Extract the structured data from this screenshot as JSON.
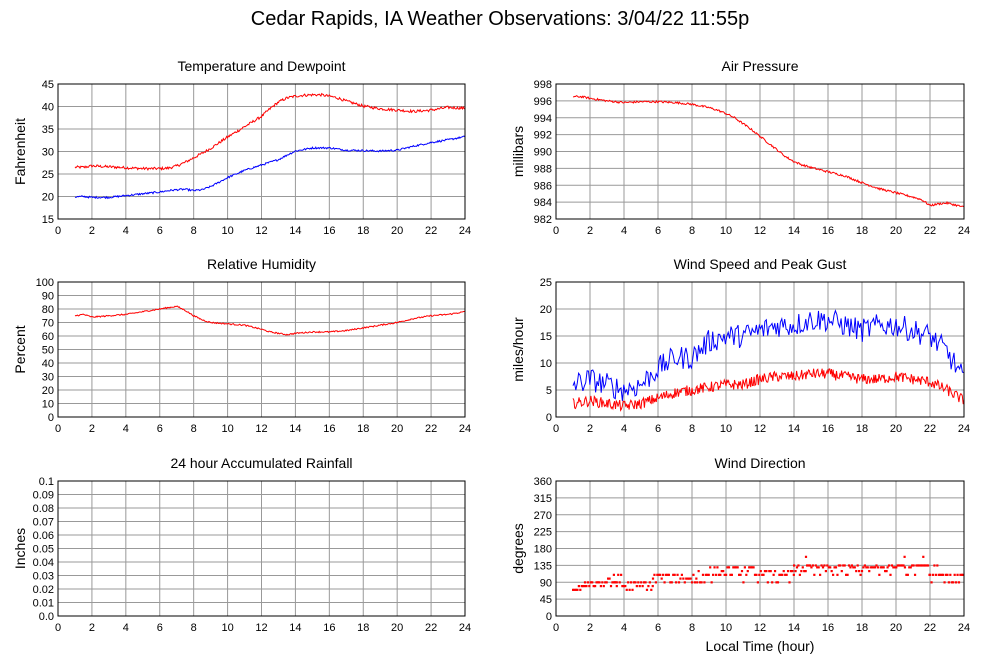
{
  "page": {
    "title": "Cedar Rapids, IA Weather Observations: 3/04/22 11:55p",
    "xlabel": "Local Time (hour)"
  },
  "colors": {
    "temperature": "#ff0000",
    "dewpoint": "#0000ff",
    "grid": "#999999"
  },
  "chart_data": [
    {
      "id": "temp",
      "type": "line",
      "title": "Temperature and Dewpoint",
      "ylabel": "Fahrenheit",
      "xlim": [
        0,
        24
      ],
      "ylim": [
        15,
        45
      ],
      "xticks": [
        0,
        2,
        4,
        6,
        8,
        10,
        12,
        14,
        16,
        18,
        20,
        22,
        24
      ],
      "yticks": [
        15,
        20,
        25,
        30,
        35,
        40,
        45
      ],
      "grid": true,
      "series": [
        {
          "color": "#ff0000",
          "noise": 0.3,
          "x": [
            1,
            1.5,
            2,
            3,
            4,
            5,
            6,
            6.5,
            7,
            7.5,
            8,
            8.5,
            9,
            10,
            11,
            12,
            12.5,
            13,
            13.5,
            14,
            14.5,
            15,
            15.5,
            16,
            16.5,
            17,
            18,
            19,
            20,
            21,
            22,
            23,
            24
          ],
          "y": [
            26.5,
            26.5,
            26.8,
            26.6,
            26.4,
            26.2,
            26.2,
            26.3,
            26.8,
            27.6,
            28.6,
            29.6,
            30.7,
            33.2,
            35.5,
            37.8,
            39.5,
            41.0,
            41.9,
            42.3,
            42.5,
            42.6,
            42.6,
            42.3,
            41.9,
            41.2,
            40.1,
            39.5,
            39.2,
            38.9,
            39.2,
            39.8,
            39.6
          ]
        },
        {
          "color": "#0000ff",
          "noise": 0.2,
          "x": [
            1,
            1.5,
            2,
            3,
            4,
            5,
            6,
            6.5,
            7,
            7.5,
            8,
            8.5,
            9,
            10,
            11,
            12,
            12.5,
            13,
            13.5,
            14,
            15,
            16,
            17,
            18,
            19,
            20,
            21,
            22,
            23,
            24
          ],
          "y": [
            19.9,
            20.0,
            19.8,
            19.8,
            20.2,
            20.6,
            21.0,
            21.3,
            21.5,
            21.6,
            21.3,
            21.5,
            22.2,
            24.2,
            25.8,
            27.0,
            27.6,
            28.2,
            29.2,
            30.1,
            30.8,
            30.8,
            30.3,
            30.2,
            30.1,
            30.3,
            31.2,
            32.0,
            32.6,
            33.3
          ]
        }
      ]
    },
    {
      "id": "pres",
      "type": "line",
      "title": "Air Pressure",
      "ylabel": "millibars",
      "xlim": [
        0,
        24
      ],
      "ylim": [
        982,
        998
      ],
      "xticks": [
        0,
        2,
        4,
        6,
        8,
        10,
        12,
        14,
        16,
        18,
        20,
        22,
        24
      ],
      "yticks": [
        982,
        984,
        986,
        988,
        990,
        992,
        994,
        996,
        998
      ],
      "grid": true,
      "series": [
        {
          "color": "#ff0000",
          "noise": 0.12,
          "x": [
            1,
            1.5,
            2,
            3,
            4,
            5,
            6,
            7,
            7.5,
            8,
            8.5,
            9,
            9.5,
            10,
            10.5,
            11,
            11.5,
            12,
            12.5,
            13,
            13.5,
            14,
            14.5,
            15,
            16,
            17,
            18,
            19,
            20,
            21,
            21.5,
            22,
            22.5,
            23,
            24
          ],
          "y": [
            996.5,
            996.5,
            996.3,
            996.0,
            995.8,
            995.9,
            995.9,
            995.8,
            995.7,
            995.6,
            995.4,
            995.2,
            994.9,
            994.5,
            994.0,
            993.3,
            992.6,
            991.8,
            991.0,
            990.2,
            989.4,
            988.8,
            988.4,
            988.1,
            987.6,
            987.1,
            986.3,
            985.6,
            985.1,
            984.6,
            984.3,
            983.6,
            983.8,
            983.9,
            983.4
          ]
        }
      ]
    },
    {
      "id": "rh",
      "type": "line",
      "title": "Relative Humidity",
      "ylabel": "Percent",
      "xlim": [
        0,
        24
      ],
      "ylim": [
        0,
        100
      ],
      "xticks": [
        0,
        2,
        4,
        6,
        8,
        10,
        12,
        14,
        16,
        18,
        20,
        22,
        24
      ],
      "yticks": [
        0,
        10,
        20,
        30,
        40,
        50,
        60,
        70,
        80,
        90,
        100
      ],
      "grid": true,
      "series": [
        {
          "color": "#ff0000",
          "noise": 0.5,
          "x": [
            1,
            1.5,
            2,
            3,
            4,
            5,
            6,
            6.5,
            7,
            7.5,
            8,
            8.5,
            9,
            10,
            11,
            12,
            12.5,
            13,
            13.5,
            14,
            15,
            16,
            17,
            18,
            19,
            20,
            21,
            22,
            23,
            24
          ],
          "y": [
            75,
            76,
            74,
            75,
            76,
            78,
            80,
            81,
            82,
            79,
            75,
            72,
            70,
            69,
            68,
            65,
            63,
            62,
            61,
            62,
            63,
            63,
            64,
            66,
            68,
            70,
            73,
            75,
            76,
            78
          ]
        }
      ]
    },
    {
      "id": "wind",
      "type": "line",
      "title": "Wind Speed and Peak Gust",
      "ylabel": "miles/hour",
      "xlim": [
        0,
        24
      ],
      "ylim": [
        0,
        25
      ],
      "xticks": [
        0,
        2,
        4,
        6,
        8,
        10,
        12,
        14,
        16,
        18,
        20,
        22,
        24
      ],
      "yticks": [
        0,
        5,
        10,
        15,
        20,
        25
      ],
      "grid": true,
      "series": [
        {
          "color": "#0000ff",
          "noise": 2.2,
          "x": [
            1,
            2,
            3,
            4,
            5,
            6,
            7,
            8,
            9,
            10,
            11,
            12,
            13,
            14,
            15,
            16,
            17,
            18,
            19,
            20,
            21,
            22,
            23,
            24
          ],
          "y": [
            6,
            7,
            6,
            5,
            6,
            9,
            11,
            11,
            14,
            15,
            15,
            16,
            17,
            17,
            18,
            18,
            17,
            16,
            17,
            17,
            16,
            15,
            12,
            7
          ]
        },
        {
          "color": "#ff0000",
          "noise": 1.0,
          "x": [
            1,
            2,
            3,
            4,
            5,
            6,
            7,
            8,
            9,
            10,
            11,
            12,
            13,
            14,
            15,
            16,
            17,
            18,
            19,
            20,
            21,
            22,
            23,
            24
          ],
          "y": [
            2.5,
            3,
            2.5,
            2,
            2.5,
            3.5,
            4.5,
            5,
            5.5,
            6,
            6,
            7,
            7.5,
            7.5,
            8,
            8,
            7.5,
            7,
            7,
            7.5,
            7,
            6.5,
            5,
            3
          ]
        }
      ]
    },
    {
      "id": "rain",
      "type": "line",
      "title": "24 hour Accumulated Rainfall",
      "ylabel": "Inches",
      "xlim": [
        0,
        24
      ],
      "ylim": [
        0,
        0.1
      ],
      "xticks": [
        0,
        2,
        4,
        6,
        8,
        10,
        12,
        14,
        16,
        18,
        20,
        22,
        24
      ],
      "yticks": [
        0.0,
        0.01,
        0.02,
        0.03,
        0.04,
        0.05,
        0.06,
        0.07,
        0.08,
        0.09,
        0.1
      ],
      "ytick_labels": [
        "0.0",
        "0.01",
        "0.02",
        "0.03",
        "0.04",
        "0.05",
        "0.06",
        "0.07",
        "0.08",
        "0.09",
        "0.1"
      ],
      "grid": true,
      "series": [
        {
          "color": "#ff0000",
          "noise": 0,
          "x": [
            1,
            24
          ],
          "y": [
            0,
            0
          ]
        }
      ]
    },
    {
      "id": "dir",
      "type": "scatter",
      "title": "Wind Direction",
      "ylabel": "degrees",
      "xlim": [
        0,
        24
      ],
      "ylim": [
        0,
        360
      ],
      "xticks": [
        0,
        2,
        4,
        6,
        8,
        10,
        12,
        14,
        16,
        18,
        20,
        22,
        24
      ],
      "yticks": [
        0,
        45,
        90,
        135,
        180,
        225,
        270,
        315,
        360
      ],
      "grid": true,
      "series": [
        {
          "color": "#ff0000",
          "segments": [
            {
              "x0": 1.0,
              "x1": 1.7,
              "vals": [
                70,
                70,
                80
              ]
            },
            {
              "x0": 1.7,
              "x1": 3.6,
              "vals": [
                90,
                90,
                80,
                100
              ]
            },
            {
              "x0": 3.4,
              "x1": 3.9,
              "vals": [
                110,
                90
              ]
            },
            {
              "x0": 3.9,
              "x1": 5.7,
              "vals": [
                70,
                80,
                90
              ]
            },
            {
              "x0": 5.7,
              "x1": 8.3,
              "vals": [
                90,
                100,
                110
              ]
            },
            {
              "x0": 8.3,
              "x1": 12.2,
              "vals": [
                110,
                110,
                90,
                120,
                130
              ]
            },
            {
              "x0": 12.2,
              "x1": 14.0,
              "vals": [
                110,
                110,
                90,
                120
              ]
            },
            {
              "x0": 14.0,
              "x1": 19.5,
              "vals": [
                120,
                110,
                130,
                135
              ]
            },
            {
              "x0": 19.5,
              "x1": 22.0,
              "vals": [
                135,
                135,
                130,
                110
              ]
            },
            {
              "x0": 22.0,
              "x1": 24.0,
              "vals": [
                110,
                110,
                90,
                135
              ]
            }
          ],
          "extra_points": [
            [
              14.7,
              158
            ],
            [
              20.5,
              158
            ],
            [
              21.6,
              158
            ]
          ]
        }
      ]
    }
  ]
}
